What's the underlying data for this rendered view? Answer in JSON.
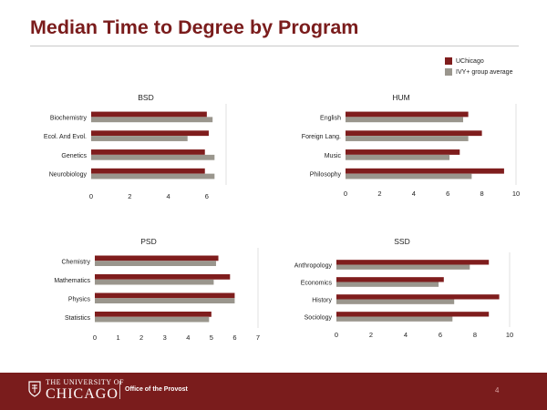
{
  "slide": {
    "title": "Median Time to Degree by Program",
    "page_number": "4"
  },
  "legend": [
    {
      "label": "UChicago",
      "color": "#7f1d1d"
    },
    {
      "label": "IVY+ group average",
      "color": "#9a968d"
    }
  ],
  "footer": {
    "university_small": "THE UNIVERSITY OF",
    "university_big": "CHICAGO",
    "office": "Office of the Provost",
    "background": "#7a1c1c"
  },
  "colors": {
    "uchicago": "#7f1d1d",
    "ivy": "#9a968d",
    "title": "#7a1c1c"
  },
  "chart_data": [
    {
      "type": "bar",
      "orientation": "horizontal",
      "title": "BSD",
      "categories": [
        "Biochemistry",
        "Ecol. And Evol.",
        "Genetics",
        "Neurobiology"
      ],
      "series": [
        {
          "name": "UChicago",
          "values": [
            6.0,
            6.1,
            5.9,
            5.9
          ]
        },
        {
          "name": "IVY+ group average",
          "values": [
            6.3,
            5.0,
            6.4,
            6.4
          ]
        }
      ],
      "xlim": [
        0,
        7
      ],
      "ticks": [
        0,
        2,
        4,
        6
      ]
    },
    {
      "type": "bar",
      "orientation": "horizontal",
      "title": "HUM",
      "categories": [
        "English",
        "Foreign Lang.",
        "Music",
        "Philosophy"
      ],
      "series": [
        {
          "name": "UChicago",
          "values": [
            7.2,
            8.0,
            6.7,
            9.3
          ]
        },
        {
          "name": "IVY+ group average",
          "values": [
            6.9,
            7.2,
            6.1,
            7.4
          ]
        }
      ],
      "xlim": [
        0,
        10
      ],
      "ticks": [
        0,
        2,
        4,
        6,
        8,
        10
      ]
    },
    {
      "type": "bar",
      "orientation": "horizontal",
      "title": "PSD",
      "categories": [
        "Chemistry",
        "Mathematics",
        "Physics",
        "Statistics"
      ],
      "series": [
        {
          "name": "UChicago",
          "values": [
            5.3,
            5.8,
            6.0,
            5.0
          ]
        },
        {
          "name": "IVY+ group average",
          "values": [
            5.2,
            5.1,
            6.0,
            4.9
          ]
        }
      ],
      "xlim": [
        0,
        7
      ],
      "ticks": [
        0,
        1,
        2,
        3,
        4,
        5,
        6,
        7
      ]
    },
    {
      "type": "bar",
      "orientation": "horizontal",
      "title": "SSD",
      "categories": [
        "Anthropology",
        "Economics",
        "History",
        "Sociology"
      ],
      "series": [
        {
          "name": "UChicago",
          "values": [
            8.8,
            6.2,
            9.4,
            8.8
          ]
        },
        {
          "name": "IVY+ group average",
          "values": [
            7.7,
            5.9,
            6.8,
            6.7
          ]
        }
      ],
      "xlim": [
        0,
        10
      ],
      "ticks": [
        0,
        2,
        4,
        6,
        8,
        10
      ]
    }
  ]
}
